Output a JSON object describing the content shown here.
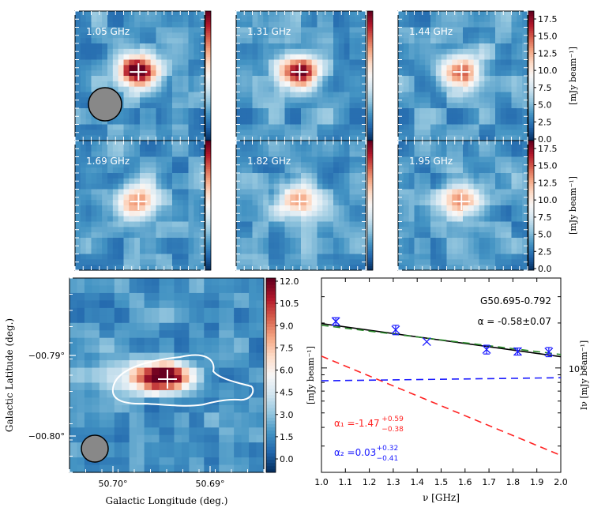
{
  "panels": {
    "freq_maps": [
      {
        "label": "1.05 GHz",
        "peak": 1.0
      },
      {
        "label": "1.31 GHz",
        "peak": 0.9
      },
      {
        "label": "1.44 GHz",
        "peak": 0.72
      },
      {
        "label": "1.69 GHz",
        "peak": 0.62
      },
      {
        "label": "1.82 GHz",
        "peak": 0.6
      },
      {
        "label": "1.95 GHz",
        "peak": 0.58
      }
    ],
    "top_colorbar": {
      "ticks": [
        "0.0",
        "2.5",
        "5.0",
        "7.5",
        "10.0",
        "12.5",
        "15.0",
        "17.5"
      ],
      "label": "[mJy beam⁻¹]"
    },
    "map": {
      "xlabel": "Galactic Longitude (deg.)",
      "ylabel": "Galactic Latitude (deg.)",
      "xticks": [
        "50.70°",
        "50.69°"
      ],
      "yticks": [
        "−00.79°",
        "−00.80°"
      ],
      "colorbar_ticks": [
        "0.0",
        "1.5",
        "3.0",
        "4.5",
        "6.0",
        "7.5",
        "9.0",
        "10.5",
        "12.0"
      ]
    }
  },
  "chart_data": {
    "type": "line",
    "title": "G50.695-0.792",
    "alpha_text": "α = -0.58±0.07",
    "xlabel": "ν [GHz]",
    "ylabel_left": "[mJy beam⁻¹]",
    "ylabel_right": "Iν [mJy beam⁻¹]",
    "xlim": [
      1.0,
      2.0
    ],
    "ylim": [
      2.0,
      40.0
    ],
    "yscale": "log",
    "xticks": [
      "1.0",
      "1.1",
      "1.2",
      "1.3",
      "1.4",
      "1.5",
      "1.6",
      "1.7",
      "1.8",
      "1.9",
      "2.0"
    ],
    "ytick_label": "10¹",
    "points": {
      "x": [
        1.06,
        1.31,
        1.44,
        1.69,
        1.82,
        1.95
      ],
      "y": [
        20.5,
        18.0,
        15.0,
        13.3,
        12.9,
        12.8
      ],
      "err": [
        1.2,
        1.3,
        0.0,
        0.9,
        0.7,
        0.9
      ]
    },
    "series": [
      {
        "name": "black fit",
        "color": "#000000",
        "style": "solid",
        "x": [
          1.0,
          2.0
        ],
        "y": [
          19.8,
          11.9
        ]
      },
      {
        "name": "green fit",
        "color": "#2a8a2a",
        "style": "dashed",
        "x": [
          1.0,
          2.0
        ],
        "y": [
          19.3,
          12.3
        ]
      },
      {
        "name": "α₁",
        "color": "#ff2222",
        "style": "dashed",
        "x": [
          1.0,
          2.0
        ],
        "y": [
          12.0,
          2.6
        ]
      },
      {
        "name": "α₂",
        "color": "#1a1aff",
        "style": "dashed",
        "x": [
          1.0,
          2.0
        ],
        "y": [
          8.2,
          8.6
        ]
      }
    ],
    "annotations": {
      "alpha1": {
        "base": "α₁ =-1.47",
        "sup": "+0.59",
        "sub": "−0.38",
        "color": "#ff2222"
      },
      "alpha2": {
        "base": "α₂ =0.03",
        "sup": "+0.32",
        "sub": "−0.41",
        "color": "#1a1aff"
      }
    }
  }
}
